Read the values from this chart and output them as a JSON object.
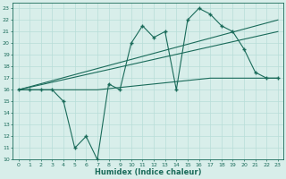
{
  "xlabel": "Humidex (Indice chaleur)",
  "xlim": [
    -0.5,
    23.5
  ],
  "ylim": [
    10,
    23.5
  ],
  "yticks": [
    10,
    11,
    12,
    13,
    14,
    15,
    16,
    17,
    18,
    19,
    20,
    21,
    22,
    23
  ],
  "xticks": [
    0,
    1,
    2,
    3,
    4,
    5,
    6,
    7,
    8,
    9,
    10,
    11,
    12,
    13,
    14,
    15,
    16,
    17,
    18,
    19,
    20,
    21,
    22,
    23
  ],
  "background_color": "#d8eeea",
  "grid_color": "#b8ddd8",
  "line_color": "#1a6b5a",
  "line1_x": [
    0,
    1,
    2,
    3,
    4,
    5,
    6,
    7,
    8,
    9,
    10,
    11,
    12,
    13,
    14,
    15,
    16,
    17,
    18,
    19,
    20,
    21,
    22,
    23
  ],
  "line1_y": [
    16.0,
    16.0,
    16.0,
    16.0,
    15.0,
    11.0,
    12.0,
    10.0,
    16.5,
    16.0,
    20.0,
    21.5,
    20.5,
    21.0,
    16.0,
    22.0,
    23.0,
    22.5,
    21.5,
    21.0,
    19.5,
    17.5,
    17.0,
    17.0
  ],
  "line2_x": [
    0,
    2,
    3,
    4,
    5,
    6,
    7,
    8,
    9,
    10,
    11,
    12,
    13,
    14,
    15,
    16,
    17,
    18,
    19,
    20,
    21,
    22,
    23
  ],
  "line2_y": [
    16.0,
    16.0,
    16.0,
    16.0,
    16.0,
    16.0,
    16.0,
    16.1,
    16.2,
    16.3,
    16.4,
    16.5,
    16.6,
    16.7,
    16.8,
    16.9,
    17.0,
    17.0,
    17.0,
    17.0,
    17.0,
    17.0,
    17.0
  ],
  "line3_x": [
    0,
    23
  ],
  "line3_y": [
    16.0,
    22.0
  ],
  "line4_x": [
    0,
    23
  ],
  "line4_y": [
    16.0,
    21.0
  ]
}
